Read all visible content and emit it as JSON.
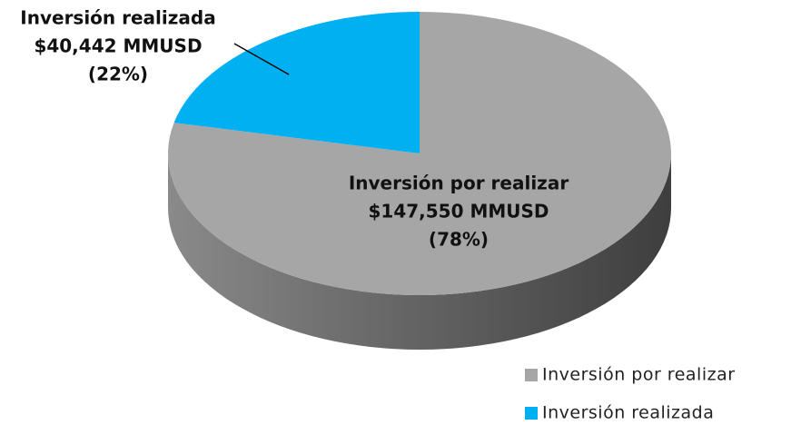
{
  "chart_data": {
    "type": "pie3d",
    "categories": [
      "Inversión por realizar",
      "Inversión realizada"
    ],
    "values": [
      147550,
      40442
    ],
    "value_labels": [
      "$147,550 MMUSD",
      "$40,442 MMUSD"
    ],
    "percents": [
      78,
      22
    ],
    "percent_labels": [
      "(78%)",
      "(22%)"
    ],
    "colors": [
      "#a6a6a6",
      "#00b0f0"
    ],
    "legend": "bottom-right"
  }
}
